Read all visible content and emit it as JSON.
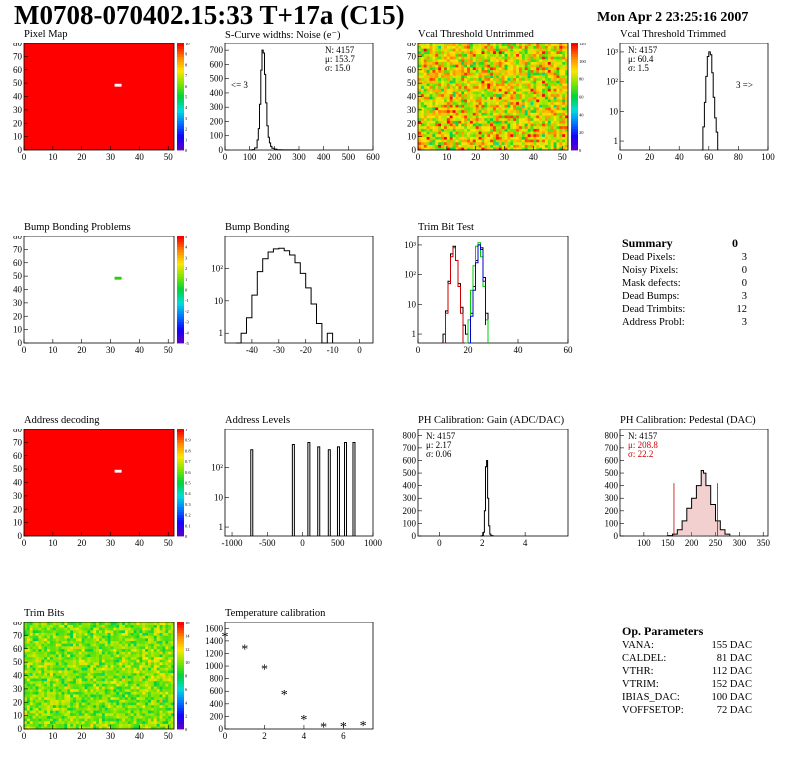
{
  "header": {
    "title": "M0708-070402.15:33 T+17a (C15)",
    "date": "Mon Apr  2 23:25:16 2007"
  },
  "colors": {
    "hist_line": "#000000",
    "red_curve": "#cc0000",
    "green_curve": "#00cc00",
    "blue_curve": "#0000cc",
    "pedestal_red": "#cc0000"
  },
  "chart_data": [
    {
      "id": "pixel_map",
      "type": "heatmap",
      "title": "Pixel Map",
      "xlim": [
        0,
        52
      ],
      "ylim": [
        0,
        80
      ],
      "xticks": [
        "0",
        "10",
        "20",
        "30",
        "40",
        "50"
      ],
      "yticks": [
        "0",
        "10",
        "20",
        "30",
        "40",
        "50",
        "60",
        "70",
        "80"
      ],
      "palette_ticks": [
        "0",
        "1",
        "2",
        "3",
        "4",
        "5",
        "6",
        "7",
        "8",
        "9",
        "10"
      ],
      "fill": "uniform",
      "fill_value": 10,
      "defects": [
        {
          "col": 21,
          "row": 47,
          "value": 8
        },
        {
          "col": 21,
          "row": 46,
          "value": 6
        }
      ]
    },
    {
      "id": "scurve",
      "type": "line",
      "title": "S-Curve widths: Noise (e⁻)",
      "xlim": [
        0,
        600
      ],
      "ylim": [
        0,
        750
      ],
      "xticks": [
        "0",
        "100",
        "200",
        "300",
        "400",
        "500",
        "600"
      ],
      "yticks": [
        "0",
        "100",
        "200",
        "300",
        "400",
        "500",
        "600",
        "700"
      ],
      "stats": [
        "N: 4157",
        "μ: 153.7",
        "σ: 15.0"
      ],
      "annotation": "<= 3",
      "series": [
        {
          "name": "",
          "x": [
            100,
            110,
            120,
            130,
            135,
            140,
            145,
            150,
            155,
            160,
            165,
            170,
            175,
            180,
            185,
            190,
            200,
            210,
            230,
            250,
            300
          ],
          "y": [
            0,
            3,
            15,
            70,
            150,
            320,
            560,
            700,
            680,
            530,
            330,
            170,
            90,
            50,
            25,
            12,
            6,
            2,
            1,
            1,
            0
          ]
        }
      ]
    },
    {
      "id": "vcal_untrimmed",
      "type": "heatmap",
      "title": "Vcal Threshold Untrimmed",
      "xlim": [
        0,
        52
      ],
      "ylim": [
        0,
        80
      ],
      "xticks": [
        "0",
        "10",
        "20",
        "30",
        "40",
        "50"
      ],
      "yticks": [
        "0",
        "10",
        "20",
        "30",
        "40",
        "50",
        "60",
        "70",
        "80"
      ],
      "palette_ticks": [
        "0",
        "20",
        "40",
        "60",
        "80",
        "100",
        "120"
      ],
      "fill": "noise",
      "mean": 95,
      "spread": 30
    },
    {
      "id": "vcal_trimmed",
      "type": "line",
      "title": "Vcal Threshold Trimmed",
      "log_y": true,
      "xlim": [
        0,
        100
      ],
      "ylim": [
        0.5,
        2000
      ],
      "xticks": [
        "0",
        "20",
        "40",
        "60",
        "80",
        "100"
      ],
      "yticks": [
        "1",
        "10",
        "10²",
        "10³"
      ],
      "stats": [
        "N: 4157",
        "μ: 60.4",
        "σ:  1.5"
      ],
      "annotation": "3 =>",
      "series": [
        {
          "name": "",
          "x": [
            55,
            56,
            57,
            58,
            59,
            60,
            61,
            62,
            63,
            64,
            65,
            66
          ],
          "y": [
            0.5,
            3,
            20,
            150,
            700,
            1000,
            800,
            200,
            30,
            6,
            2,
            0.5
          ]
        }
      ]
    },
    {
      "id": "bump_problems",
      "type": "heatmap",
      "title": "Bump Bonding Problems",
      "xlim": [
        0,
        52
      ],
      "ylim": [
        0,
        80
      ],
      "xticks": [
        "0",
        "10",
        "20",
        "30",
        "40",
        "50"
      ],
      "yticks": [
        "0",
        "10",
        "20",
        "30",
        "40",
        "50",
        "60",
        "70",
        "80"
      ],
      "palette_ticks": [
        "-5",
        "-4",
        "-3",
        "-2",
        "-1",
        "0",
        "1",
        "2",
        "3",
        "4",
        "5"
      ],
      "fill": "none",
      "defects": [
        {
          "col": 21,
          "row": 47,
          "value": 0
        },
        {
          "col": 21,
          "row": 46,
          "value": 0
        }
      ]
    },
    {
      "id": "bump_bonding",
      "type": "line",
      "title": "Bump Bonding",
      "log_y": true,
      "xlim": [
        -50,
        5
      ],
      "ylim": [
        0.5,
        1000
      ],
      "xticks": [
        "-40",
        "-30",
        "-20",
        "-10",
        "0"
      ],
      "yticks": [
        "1",
        "10",
        "10²"
      ],
      "series": [
        {
          "name": "",
          "x": [
            -46,
            -44,
            -42,
            -40,
            -38,
            -36,
            -34,
            -32,
            -30,
            -28,
            -26,
            -24,
            -22,
            -20,
            -18,
            -16,
            -14,
            -12,
            -10
          ],
          "y": [
            0.5,
            1,
            3,
            15,
            80,
            200,
            320,
            400,
            420,
            350,
            260,
            150,
            70,
            25,
            8,
            2,
            0.5,
            1,
            0.5
          ]
        }
      ]
    },
    {
      "id": "trim_bit_test",
      "type": "line",
      "title": "Trim Bit Test",
      "log_y": true,
      "xlim": [
        0,
        60
      ],
      "ylim": [
        0.5,
        2000
      ],
      "xticks": [
        "0",
        "20",
        "40",
        "60"
      ],
      "yticks": [
        "1",
        "10",
        "10²",
        "10³"
      ],
      "series": [
        {
          "name": "",
          "color": "#000000",
          "x": [
            10,
            11,
            12,
            13,
            14,
            15,
            16,
            17,
            18,
            19,
            20,
            21,
            22,
            23,
            24,
            25,
            26,
            27,
            28
          ],
          "y": [
            1,
            6,
            60,
            500,
            900,
            300,
            50,
            8,
            2,
            1,
            0.5,
            5,
            40,
            300,
            1000,
            800,
            80,
            5,
            0.5
          ]
        },
        {
          "name": "",
          "color": "#cc0000",
          "x": [
            10,
            11,
            12,
            13,
            14,
            15,
            16,
            17,
            18
          ],
          "y": [
            0.5,
            5,
            50,
            400,
            800,
            300,
            40,
            5,
            0.5
          ]
        },
        {
          "name": "",
          "color": "#00cc00",
          "x": [
            19,
            20,
            21,
            22,
            23,
            24,
            25,
            26,
            27,
            28
          ],
          "y": [
            0.5,
            3,
            30,
            200,
            900,
            1200,
            400,
            40,
            3,
            0.5
          ]
        },
        {
          "name": "",
          "color": "#0000cc",
          "x": [
            20,
            21,
            22,
            23,
            24,
            25,
            26,
            27
          ],
          "y": [
            0.5,
            4,
            30,
            250,
            1000,
            700,
            60,
            2
          ]
        }
      ]
    },
    {
      "id": "address_decoding",
      "type": "heatmap",
      "title": "Address decoding",
      "xlim": [
        0,
        52
      ],
      "ylim": [
        0,
        80
      ],
      "xticks": [
        "0",
        "10",
        "20",
        "30",
        "40",
        "50"
      ],
      "yticks": [
        "0",
        "10",
        "20",
        "30",
        "40",
        "50",
        "60",
        "70",
        "80"
      ],
      "palette_ticks": [
        "0",
        "0.1",
        "0.2",
        "0.3",
        "0.4",
        "0.5",
        "0.6",
        "0.7",
        "0.8",
        "0.9",
        "1"
      ],
      "fill": "uniform",
      "fill_value": 1,
      "defects": [
        {
          "col": 21,
          "row": 47,
          "value": 0.5
        },
        {
          "col": 21,
          "row": 46,
          "value": 0.5
        }
      ]
    },
    {
      "id": "address_levels",
      "type": "bar",
      "title": "Address Levels",
      "log_y": true,
      "xlim": [
        -1100,
        1000
      ],
      "ylim": [
        0.5,
        2000
      ],
      "xticks": [
        "-1000",
        "-500",
        "0",
        "500",
        "1000"
      ],
      "yticks": [
        "1",
        "10",
        "10²"
      ],
      "peaks": [
        {
          "x": -720,
          "y": 400
        },
        {
          "x": -130,
          "y": 600
        },
        {
          "x": 90,
          "y": 700
        },
        {
          "x": 230,
          "y": 500
        },
        {
          "x": 380,
          "y": 400
        },
        {
          "x": 510,
          "y": 500
        },
        {
          "x": 610,
          "y": 700
        },
        {
          "x": 730,
          "y": 700
        }
      ]
    },
    {
      "id": "ph_gain",
      "type": "line",
      "title": "PH Calibration: Gain (ADC/DAC)",
      "xlim": [
        -1,
        6
      ],
      "ylim": [
        0,
        850
      ],
      "xticks": [
        "0",
        "2",
        "4"
      ],
      "yticks": [
        "0",
        "100",
        "200",
        "300",
        "400",
        "500",
        "600",
        "700",
        "800"
      ],
      "stats": [
        "N: 4157",
        "μ: 2.17",
        "σ: 0.06"
      ],
      "series": [
        {
          "name": "",
          "x": [
            1.9,
            2.0,
            2.05,
            2.1,
            2.15,
            2.2,
            2.25,
            2.3,
            2.35,
            2.4,
            2.5
          ],
          "y": [
            0,
            5,
            30,
            200,
            550,
            600,
            300,
            80,
            15,
            3,
            0
          ]
        }
      ]
    },
    {
      "id": "ph_pedestal",
      "type": "line",
      "title": "PH Calibration: Pedestal (DAC)",
      "xlim": [
        50,
        360
      ],
      "ylim": [
        0,
        850
      ],
      "xticks": [
        "100",
        "150",
        "200",
        "250",
        "300",
        "350"
      ],
      "yticks": [
        "0",
        "100",
        "200",
        "300",
        "400",
        "500",
        "600",
        "700",
        "800"
      ],
      "stats": [
        "N: 4157",
        "μ: 208.8",
        "σ: 22.2"
      ],
      "fit_lines_x": [
        163,
        254
      ],
      "series": [
        {
          "name": "",
          "x": [
            150,
            160,
            170,
            180,
            190,
            200,
            210,
            220,
            225,
            230,
            240,
            250,
            260,
            270,
            280
          ],
          "y": [
            3,
            15,
            50,
            120,
            220,
            300,
            400,
            520,
            500,
            400,
            250,
            120,
            50,
            15,
            3
          ]
        }
      ]
    },
    {
      "id": "trim_bits",
      "type": "heatmap",
      "title": "Trim Bits",
      "xlim": [
        0,
        52
      ],
      "ylim": [
        0,
        80
      ],
      "xticks": [
        "0",
        "10",
        "20",
        "30",
        "40",
        "50"
      ],
      "yticks": [
        "0",
        "10",
        "20",
        "30",
        "40",
        "50",
        "60",
        "70",
        "80"
      ],
      "palette_ticks": [
        "0",
        "2",
        "4",
        "6",
        "8",
        "10",
        "12",
        "14",
        "16"
      ],
      "fill": "noise",
      "mean": 10,
      "spread": 2.2,
      "vmax": 16
    },
    {
      "id": "temperature",
      "type": "scatter",
      "title": "Temperature calibration",
      "xlim": [
        0,
        7.5
      ],
      "ylim": [
        0,
        1700
      ],
      "xticks": [
        "0",
        "2",
        "4",
        "6"
      ],
      "yticks": [
        "0",
        "200",
        "400",
        "600",
        "800",
        "1000",
        "1200",
        "1400",
        "1600"
      ],
      "series": [
        {
          "name": "",
          "x": [
            0,
            1,
            2,
            3,
            4,
            5,
            6,
            7
          ],
          "y": [
            1480,
            1280,
            960,
            560,
            160,
            40,
            50,
            60
          ]
        }
      ]
    }
  ],
  "summary": {
    "title": "Summary",
    "value": "0",
    "rows": [
      {
        "label": "Dead Pixels:",
        "value": "3"
      },
      {
        "label": "Noisy Pixels:",
        "value": "0"
      },
      {
        "label": "Mask defects:",
        "value": "0"
      },
      {
        "label": "Dead Bumps:",
        "value": "3"
      },
      {
        "label": "Dead Trimbits:",
        "value": "12"
      },
      {
        "label": "Address Probl:",
        "value": "3"
      }
    ]
  },
  "op_params": {
    "title": "Op. Parameters",
    "rows": [
      {
        "label": "VANA:",
        "value": "155 DAC"
      },
      {
        "label": "CALDEL:",
        "value": "81 DAC"
      },
      {
        "label": "VTHR:",
        "value": "112 DAC"
      },
      {
        "label": "VTRIM:",
        "value": "152 DAC"
      },
      {
        "label": "IBIAS_DAC:",
        "value": "100 DAC"
      },
      {
        "label": "VOFFSETOP:",
        "value": "72 DAC"
      }
    ]
  }
}
